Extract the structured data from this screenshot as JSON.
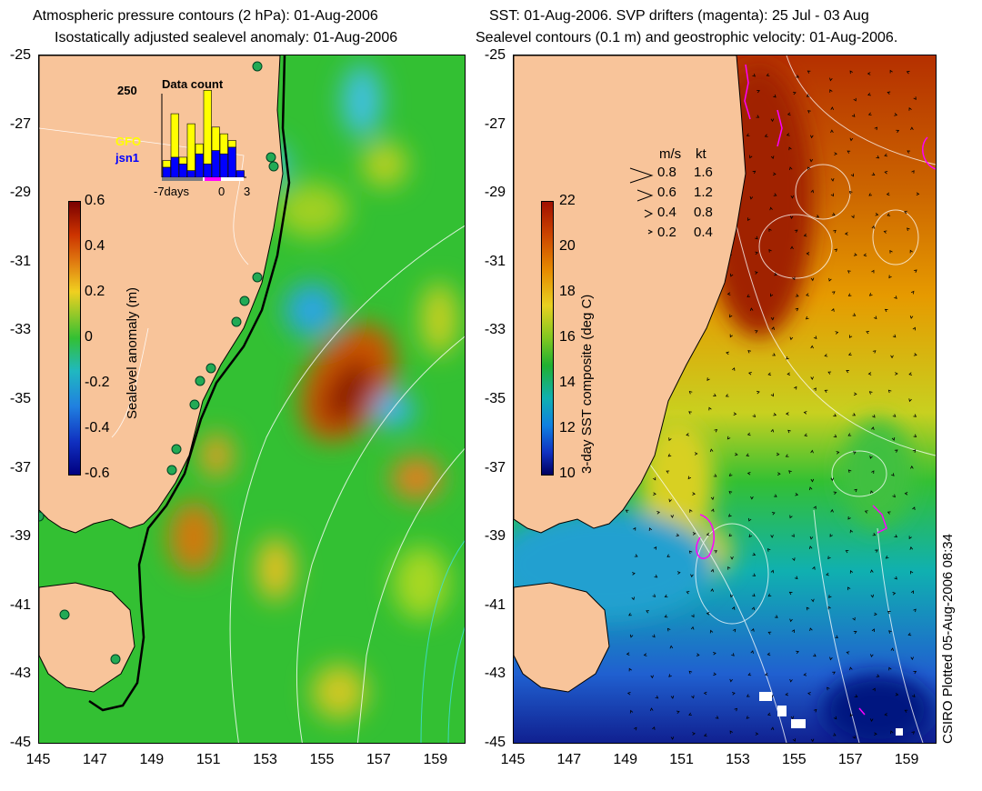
{
  "left": {
    "title_line1": "Atmospheric pressure contours (2 hPa): 01-Aug-2006",
    "title_line2": "Isostatically adjusted sealevel anomaly: 01-Aug-2006",
    "colorbar_label": "Sealevel anomaly (m)",
    "colorbar_ticks": [
      "0.6",
      "0.4",
      "0.2",
      "0",
      "-0.2",
      "-0.4",
      "-0.6"
    ],
    "inset": {
      "title": "Data count",
      "ymax": "250",
      "legend_gfo": "GFO",
      "legend_jsn1": "jsn1",
      "x_label_left": "-7days",
      "x_label_mid": "0",
      "x_label_right": "3",
      "gfo_color": "#ffff00",
      "jsn1_color": "#0000ff",
      "chart_data": {
        "type": "bar",
        "x": [
          -7,
          -6,
          -5,
          -4,
          -3,
          -2,
          -1,
          0,
          1,
          2
        ],
        "series": [
          {
            "name": "GFO",
            "values": [
              20,
              130,
              20,
              140,
              30,
              220,
              70,
              60,
              20,
              0
            ]
          },
          {
            "name": "jsn1",
            "values": [
              30,
              60,
              40,
              20,
              70,
              40,
              80,
              70,
              90,
              20
            ]
          }
        ],
        "ylim": [
          0,
          250
        ]
      }
    }
  },
  "right": {
    "title_line1": "SST: 01-Aug-2006. SVP drifters (magenta): 25 Jul - 03 Aug",
    "title_line2": "Sealevel contours (0.1 m) and geostrophic velocity: 01-Aug-2006.",
    "colorbar_label": "3-day SST composite (deg C)",
    "colorbar_ticks": [
      "22",
      "20",
      "18",
      "16",
      "14",
      "12",
      "10"
    ],
    "vector_legend": {
      "header_ms": "m/s",
      "header_kt": "kt",
      "rows": [
        {
          "ms": "0.8",
          "kt": "1.6"
        },
        {
          "ms": "0.6",
          "kt": "1.2"
        },
        {
          "ms": "0.4",
          "kt": "0.8"
        },
        {
          "ms": "0.2",
          "kt": "0.4"
        }
      ]
    }
  },
  "y_ticks": [
    "-25",
    "-27",
    "-29",
    "-31",
    "-33",
    "-35",
    "-37",
    "-39",
    "-41",
    "-43",
    "-45"
  ],
  "x_ticks": [
    "145",
    "147",
    "149",
    "151",
    "153",
    "155",
    "157",
    "159"
  ],
  "credit": "CSIRO Plotted 05-Aug-2006 08:34",
  "colors": {
    "land": "#f8c49a",
    "ocean_base": "#33cc33",
    "coast": "#000000"
  }
}
